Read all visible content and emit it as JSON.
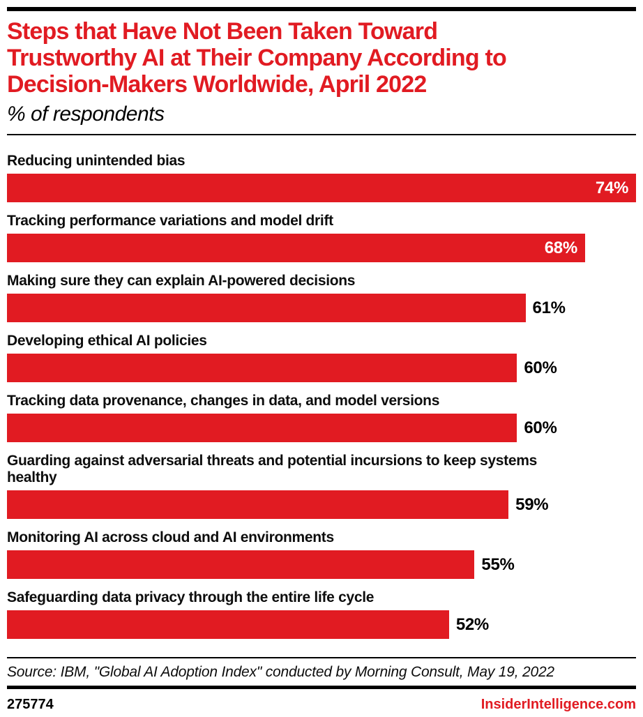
{
  "colors": {
    "brand_red": "#e11b22",
    "bar_red": "#e11b22",
    "text_black": "#0d0d0d",
    "value_inside_white": "#ffffff",
    "background": "#ffffff"
  },
  "header": {
    "title_lines": [
      "Steps that Have Not Been Taken Toward",
      "Trustworthy AI at Their Company According to",
      "Decision-Makers Worldwide, April 2022"
    ],
    "subtitle": "% of respondents"
  },
  "chart_data": {
    "type": "bar",
    "orientation": "horizontal",
    "unit": "%",
    "title": "Steps that Have Not Been Taken Toward Trustworthy AI at Their Company According to Decision-Makers Worldwide, April 2022",
    "subtitle": "% of respondents",
    "axis_max_scale": 74,
    "grid": false,
    "legend": false,
    "categories": [
      "Reducing unintended bias",
      "Tracking performance variations and model drift",
      "Making sure they can explain AI-powered decisions",
      "Developing ethical AI policies",
      "Tracking data provenance, changes in data, and model versions",
      "Guarding against adversarial threats and potential incursions to keep systems healthy",
      "Monitoring AI across cloud and AI environments",
      "Safeguarding data privacy through the entire life cycle"
    ],
    "values": [
      74,
      68,
      61,
      60,
      60,
      59,
      55,
      52
    ],
    "value_labels": [
      "74%",
      "68%",
      "61%",
      "60%",
      "60%",
      "59%",
      "55%",
      "52%"
    ],
    "value_label_inside_bar": [
      true,
      true,
      false,
      false,
      false,
      false,
      false,
      false
    ],
    "bar_color": "#e11b22"
  },
  "source_line": "Source: IBM, \"Global AI Adoption Index\" conducted by Morning Consult, May 19, 2022",
  "footer": {
    "chart_id": "275774",
    "site": "InsiderIntelligence.com"
  }
}
